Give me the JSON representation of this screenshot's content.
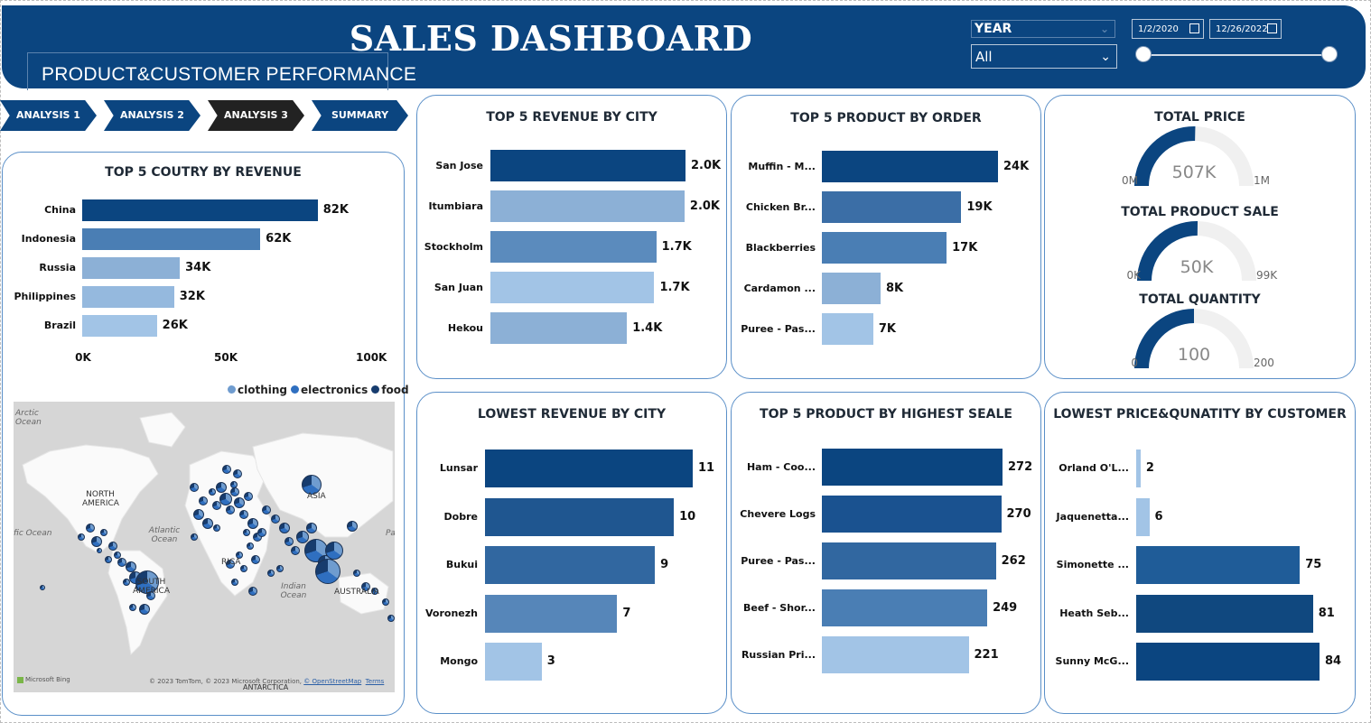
{
  "header": {
    "title": "SALES DASHBOARD",
    "subtitle": "PRODUCT&CUSTOMER PERFORMANCE"
  },
  "filters": {
    "year_label": "YEAR",
    "year_value": "All",
    "start_date": "1/2/2020",
    "end_date": "12/26/2022"
  },
  "nav": [
    {
      "label": "ANALYSIS 1",
      "active": false
    },
    {
      "label": "ANALYSIS 2",
      "active": false
    },
    {
      "label": "ANALYSIS 3",
      "active": true
    },
    {
      "label": "SUMMARY",
      "active": false
    }
  ],
  "colors": {
    "header": "#0b4580",
    "active_nav": "#222222",
    "card_border": "#5a8fc8"
  },
  "country_chart": {
    "title": "TOP 5 COUTRY BY REVENUE",
    "ticks": [
      "0K",
      "50K",
      "100K"
    ],
    "max": 100000,
    "items": [
      {
        "label": "China",
        "value": 82000,
        "display": "82K",
        "color": "#0b4580"
      },
      {
        "label": "Indonesia",
        "value": 62000,
        "display": "62K",
        "color": "#4a7eb4"
      },
      {
        "label": "Russia",
        "value": 34000,
        "display": "34K",
        "color": "#8cb0d6"
      },
      {
        "label": "Philippines",
        "value": 32000,
        "display": "32K",
        "color": "#95b9de"
      },
      {
        "label": "Brazil",
        "value": 26000,
        "display": "26K",
        "color": "#a2c4e6"
      }
    ]
  },
  "map": {
    "legend": [
      {
        "label": "clothing",
        "color": "#6f9ccf"
      },
      {
        "label": "electronics",
        "color": "#2f6fc0"
      },
      {
        "label": "food",
        "color": "#173c6e"
      }
    ],
    "labels": {
      "arctic": "Arctic Ocean",
      "north_america": "NORTH AMERICA",
      "atlantic": "Atlantic Ocean",
      "pacific": "fic Ocean",
      "asia": "ASIA",
      "africa": "RICA",
      "south_america": "SOUTH AMERICA",
      "indian": "Indian Ocean",
      "australia": "AUSTRALIA",
      "antarctica": "ANTARCTICA",
      "pa": "Pa"
    },
    "attribution": "© 2023 TomTom, © 2023 Microsoft Corporation,",
    "osm": "© OpenStreetMap",
    "terms": "Terms",
    "bing": "Microsoft Bing"
  },
  "city_top": {
    "title": "TOP 5 REVENUE BY CITY",
    "max": 2000,
    "items": [
      {
        "label": "San Jose",
        "value": 2000,
        "display": "2.0K",
        "color": "#0b4580"
      },
      {
        "label": "Itumbiara",
        "value": 1990,
        "display": "2.0K",
        "color": "#8cb0d6"
      },
      {
        "label": "Stockholm",
        "value": 1700,
        "display": "1.7K",
        "color": "#5b8bbd"
      },
      {
        "label": "San Juan",
        "value": 1680,
        "display": "1.7K",
        "color": "#a2c4e6"
      },
      {
        "label": "Hekou",
        "value": 1400,
        "display": "1.4K",
        "color": "#8cb0d6"
      }
    ]
  },
  "product_order": {
    "title": "TOP 5 PRODUCT BY ORDER",
    "max": 24000,
    "items": [
      {
        "label": "Muffin - M...",
        "value": 24000,
        "display": "24K",
        "color": "#0b4580"
      },
      {
        "label": "Chicken Br...",
        "value": 19000,
        "display": "19K",
        "color": "#3b6ea6"
      },
      {
        "label": "Blackberries",
        "value": 17000,
        "display": "17K",
        "color": "#4a7eb4"
      },
      {
        "label": "Cardamon ...",
        "value": 8000,
        "display": "8K",
        "color": "#8cb0d6"
      },
      {
        "label": "Puree - Pas...",
        "value": 7000,
        "display": "7K",
        "color": "#a2c4e6"
      }
    ]
  },
  "gauges": [
    {
      "title": "TOTAL PRICE",
      "value": 507,
      "max": 1000,
      "display": "507K",
      "min_label": "0M",
      "max_label": "1M"
    },
    {
      "title": "TOTAL PRODUCT SALE",
      "value": 50,
      "max": 99,
      "display": "50K",
      "min_label": "0K",
      "max_label": "99K"
    },
    {
      "title": "TOTAL QUANTITY",
      "value": 100,
      "max": 200,
      "display": "100",
      "min_label": "0",
      "max_label": "200"
    }
  ],
  "city_low": {
    "title": "LOWEST REVENUE BY CITY",
    "max": 11,
    "items": [
      {
        "label": "Lunsar",
        "value": 11,
        "display": "11",
        "color": "#0b4580"
      },
      {
        "label": "Dobre",
        "value": 10,
        "display": "10",
        "color": "#1f5690"
      },
      {
        "label": "Bukui",
        "value": 9,
        "display": "9",
        "color": "#3167a0"
      },
      {
        "label": "Voronezh",
        "value": 7,
        "display": "7",
        "color": "#5686b9"
      },
      {
        "label": "Mongo",
        "value": 3,
        "display": "3",
        "color": "#a2c4e6"
      }
    ]
  },
  "product_sale": {
    "title": "TOP 5 PRODUCT BY HIGHEST SEALE",
    "max": 272,
    "items": [
      {
        "label": "Ham - Coo...",
        "value": 272,
        "display": "272",
        "color": "#0b4580"
      },
      {
        "label": "Chevere Logs",
        "value": 270,
        "display": "270",
        "color": "#1a5290"
      },
      {
        "label": "Puree - Pas...",
        "value": 262,
        "display": "262",
        "color": "#3167a0"
      },
      {
        "label": "Beef - Shor...",
        "value": 249,
        "display": "249",
        "color": "#4a7eb4"
      },
      {
        "label": "Russian Pri...",
        "value": 221,
        "display": "221",
        "color": "#a2c4e6"
      }
    ]
  },
  "customer_low": {
    "title": "LOWEST PRICE&QUNATITY BY CUSTOMER",
    "max": 84,
    "items": [
      {
        "label": "Orland O'L...",
        "value": 2,
        "display": "2",
        "color": "#a2c4e6"
      },
      {
        "label": "Jaquenetta...",
        "value": 6,
        "display": "6",
        "color": "#a2c4e6"
      },
      {
        "label": "Simonette ...",
        "value": 75,
        "display": "75",
        "color": "#1f5c98"
      },
      {
        "label": "Heath Seb...",
        "value": 81,
        "display": "81",
        "color": "#10487f"
      },
      {
        "label": "Sunny McG...",
        "value": 84,
        "display": "84",
        "color": "#0b4580"
      }
    ]
  }
}
